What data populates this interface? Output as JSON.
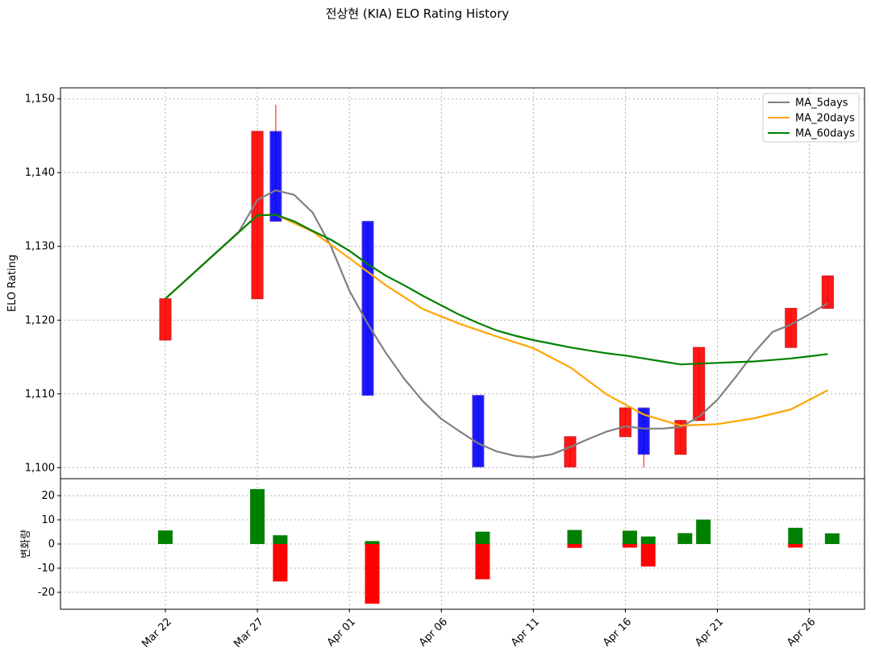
{
  "chart_data": {
    "title": "전상현 (KIA) ELO Rating History",
    "type": "candlestick",
    "dates": [
      "Mar 22",
      "Mar 27",
      "Mar 28",
      "Apr 02",
      "Apr 08",
      "Apr 13",
      "Apr 16",
      "Apr 17",
      "Apr 19",
      "Apr 20",
      "Apr 25",
      "Apr 27"
    ],
    "day_index": [
      0,
      5,
      6,
      11,
      17,
      22,
      25,
      26,
      28,
      29,
      34,
      36
    ],
    "candles": [
      {
        "open": 1117.3,
        "close": 1122.9,
        "high": 1122.9,
        "low": 1117.3
      },
      {
        "open": 1122.9,
        "close": 1145.6,
        "high": 1145.6,
        "low": 1122.9
      },
      {
        "open": 1145.6,
        "close": 1133.4,
        "high": 1149.2,
        "low": 1133.4
      },
      {
        "open": 1133.4,
        "close": 1109.8,
        "high": 1133.4,
        "low": 1109.8
      },
      {
        "open": 1109.8,
        "close": 1100.1,
        "high": 1109.8,
        "low": 1100.1
      },
      {
        "open": 1100.1,
        "close": 1104.2,
        "high": 1104.2,
        "low": 1100.1
      },
      {
        "open": 1104.2,
        "close": 1108.1,
        "high": 1108.1,
        "low": 1104.2
      },
      {
        "open": 1108.1,
        "close": 1101.8,
        "high": 1108.1,
        "low": 1100.0
      },
      {
        "open": 1101.8,
        "close": 1106.4,
        "high": 1106.4,
        "low": 1101.8
      },
      {
        "open": 1106.4,
        "close": 1116.3,
        "high": 1116.3,
        "low": 1106.4
      },
      {
        "open": 1116.3,
        "close": 1121.6,
        "high": 1121.6,
        "low": 1116.3
      },
      {
        "open": 1121.6,
        "close": 1126.0,
        "high": 1126.0,
        "low": 1121.6
      }
    ],
    "volume_bars": [
      {
        "day": 0,
        "side": "left",
        "value": 5.6,
        "color": "green"
      },
      {
        "day": 5,
        "side": "left",
        "value": 22.7,
        "color": "green"
      },
      {
        "day": 6,
        "side": "right",
        "value": 3.6,
        "color": "green"
      },
      {
        "day": 6,
        "side": "right",
        "value": -15.5,
        "color": "red"
      },
      {
        "day": 11,
        "side": "right",
        "value": 1.2,
        "color": "green"
      },
      {
        "day": 11,
        "side": "right",
        "value": -24.7,
        "color": "red"
      },
      {
        "day": 17,
        "side": "right",
        "value": 5.1,
        "color": "green"
      },
      {
        "day": 17,
        "side": "right",
        "value": -14.6,
        "color": "red"
      },
      {
        "day": 22,
        "side": "right",
        "value": 5.8,
        "color": "green"
      },
      {
        "day": 22,
        "side": "right",
        "value": -1.6,
        "color": "red"
      },
      {
        "day": 25,
        "side": "right",
        "value": 5.5,
        "color": "green"
      },
      {
        "day": 25,
        "side": "right",
        "value": -1.5,
        "color": "red"
      },
      {
        "day": 26,
        "side": "right",
        "value": 3.1,
        "color": "green"
      },
      {
        "day": 26,
        "side": "right",
        "value": -9.3,
        "color": "red"
      },
      {
        "day": 28,
        "side": "right",
        "value": 4.5,
        "color": "green"
      },
      {
        "day": 29,
        "side": "right",
        "value": 10.1,
        "color": "green"
      },
      {
        "day": 34,
        "side": "right",
        "value": 6.7,
        "color": "green"
      },
      {
        "day": 34,
        "side": "right",
        "value": -1.5,
        "color": "red"
      },
      {
        "day": 36,
        "side": "right",
        "value": 4.4,
        "color": "green"
      }
    ],
    "series": [
      {
        "name": "MA_5days",
        "color": "#808080",
        "points": [
          [
            0,
            1122.9
          ],
          [
            4,
            1132.0
          ],
          [
            5,
            1136.3
          ],
          [
            6,
            1137.6
          ],
          [
            7,
            1137.0
          ],
          [
            8,
            1134.6
          ],
          [
            9,
            1130.0
          ],
          [
            10,
            1124.0
          ],
          [
            11,
            1119.5
          ],
          [
            12,
            1115.5
          ],
          [
            13,
            1112.0
          ],
          [
            14,
            1109.0
          ],
          [
            15,
            1106.6
          ],
          [
            16,
            1104.9
          ],
          [
            17,
            1103.3
          ],
          [
            18,
            1102.2
          ],
          [
            19,
            1101.6
          ],
          [
            20,
            1101.4
          ],
          [
            21,
            1101.8
          ],
          [
            22,
            1102.8
          ],
          [
            23,
            1103.9
          ],
          [
            24,
            1104.9
          ],
          [
            25,
            1105.6
          ],
          [
            26,
            1105.3
          ],
          [
            27,
            1105.3
          ],
          [
            28,
            1105.5
          ],
          [
            29,
            1106.9
          ],
          [
            30,
            1109.2
          ],
          [
            31,
            1112.3
          ],
          [
            32,
            1115.6
          ],
          [
            33,
            1118.4
          ],
          [
            34,
            1119.4
          ],
          [
            35,
            1120.8
          ],
          [
            36,
            1122.3
          ]
        ]
      },
      {
        "name": "MA_20days",
        "color": "#FFA500",
        "points": [
          [
            0,
            1122.9
          ],
          [
            5,
            1134.2
          ],
          [
            6,
            1134.3
          ],
          [
            8,
            1132.0
          ],
          [
            10,
            1128.4
          ],
          [
            12,
            1124.7
          ],
          [
            14,
            1121.5
          ],
          [
            16,
            1119.5
          ],
          [
            18,
            1117.8
          ],
          [
            20,
            1116.2
          ],
          [
            22,
            1113.6
          ],
          [
            24,
            1109.9
          ],
          [
            26,
            1107.2
          ],
          [
            28,
            1105.7
          ],
          [
            30,
            1105.9
          ],
          [
            32,
            1106.7
          ],
          [
            34,
            1107.9
          ],
          [
            36,
            1110.5
          ]
        ]
      },
      {
        "name": "MA_60days",
        "color": "#008000",
        "points": [
          [
            0,
            1122.9
          ],
          [
            5,
            1134.2
          ],
          [
            6,
            1134.3
          ],
          [
            7,
            1133.4
          ],
          [
            8,
            1132.1
          ],
          [
            9,
            1130.9
          ],
          [
            10,
            1129.4
          ],
          [
            11,
            1127.6
          ],
          [
            12,
            1126.0
          ],
          [
            13,
            1124.7
          ],
          [
            14,
            1123.3
          ],
          [
            15,
            1122.0
          ],
          [
            16,
            1120.7
          ],
          [
            17,
            1119.6
          ],
          [
            18,
            1118.6
          ],
          [
            19,
            1117.9
          ],
          [
            20,
            1117.3
          ],
          [
            21,
            1116.8
          ],
          [
            22,
            1116.3
          ],
          [
            23,
            1115.9
          ],
          [
            24,
            1115.5
          ],
          [
            25,
            1115.2
          ],
          [
            26,
            1114.8
          ],
          [
            27,
            1114.4
          ],
          [
            28,
            1114.0
          ],
          [
            29,
            1114.1
          ],
          [
            30,
            1114.2
          ],
          [
            31,
            1114.3
          ],
          [
            32,
            1114.4
          ],
          [
            33,
            1114.6
          ],
          [
            34,
            1114.8
          ],
          [
            35,
            1115.1
          ],
          [
            36,
            1115.4
          ]
        ]
      }
    ],
    "upper_axis": {
      "ylabel": "ELO Rating",
      "ylim": [
        1098.5,
        1151.5
      ],
      "yticks": [
        1100,
        1110,
        1120,
        1130,
        1140,
        1150
      ],
      "ytick_labels": [
        "1,100",
        "1,110",
        "1,120",
        "1,130",
        "1,140",
        "1,150"
      ]
    },
    "lower_axis": {
      "ylabel": "변화량",
      "ylim": [
        -27,
        27
      ],
      "yticks": [
        -20,
        -10,
        0,
        10,
        20
      ],
      "ytick_labels": [
        "-20",
        "-10",
        "0",
        "10",
        "20"
      ]
    },
    "xaxis": {
      "xlim": [
        -5.7,
        38
      ],
      "ticks": [
        0,
        5,
        10,
        15,
        20,
        25,
        30,
        35
      ],
      "tick_labels": [
        "Mar 22",
        "Mar 27",
        "Apr 01",
        "Apr 06",
        "Apr 11",
        "Apr 16",
        "Apr 21",
        "Apr 26"
      ]
    },
    "grid": true,
    "legend_position": "top-right",
    "colors": {
      "up": "#FF0000",
      "down": "#0000FF",
      "volume_up": "#008000",
      "volume_down": "#FF0000"
    }
  }
}
